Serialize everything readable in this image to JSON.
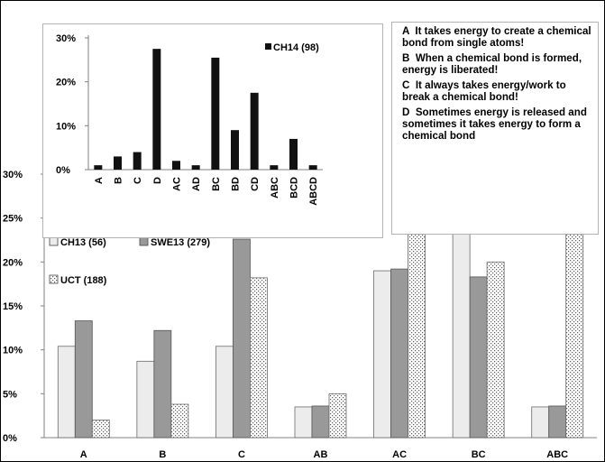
{
  "statements": [
    "A  It takes energy to create a chemical    bond from single atoms!",
    "B  When a chemical bond is formed, energy is liberated!",
    "C  It always takes energy/work to break a chemical bond!",
    "D  Sometimes energy is released and sometimes it takes energy to form a chemical bond"
  ],
  "colors": {
    "ch13": "#ececec",
    "swe13": "#999999",
    "uct_dots": "#5a5a5a",
    "ch14": "#111111",
    "axis": "#808080"
  },
  "chart_data": [
    {
      "type": "bar",
      "categories": [
        "A",
        "B",
        "C",
        "AB",
        "AC",
        "BC",
        "ABC"
      ],
      "series": [
        {
          "name": "CH13 (56)",
          "values": [
            10.4,
            8.7,
            10.4,
            3.5,
            19.0,
            24.3,
            3.5
          ]
        },
        {
          "name": "SWE13 (279)",
          "values": [
            13.3,
            12.2,
            22.6,
            3.6,
            19.2,
            18.3,
            3.6
          ]
        },
        {
          "name": "UCT (188)",
          "values": [
            2.0,
            3.8,
            18.2,
            5.0,
            23.8,
            20.0,
            25.0
          ]
        }
      ],
      "y_ticks": [
        "0%",
        "5%",
        "10%",
        "15%",
        "20%",
        "25%",
        "30%"
      ],
      "ylim": [
        0,
        30
      ],
      "legend_position": "top-left",
      "grid": false
    },
    {
      "type": "bar",
      "categories": [
        "A",
        "B",
        "C",
        "D",
        "AC",
        "AD",
        "BC",
        "BD",
        "CD",
        "ABC",
        "BCD",
        "ABCD"
      ],
      "series": [
        {
          "name": "CH14 (98)",
          "values": [
            1,
            3,
            4,
            27.5,
            2,
            1,
            25.5,
            9,
            17.5,
            1,
            7,
            1
          ]
        }
      ],
      "y_ticks": [
        "0%",
        "10%",
        "20%",
        "30%"
      ],
      "ylim": [
        0,
        30
      ],
      "legend_position": "top-right",
      "grid": false
    }
  ]
}
